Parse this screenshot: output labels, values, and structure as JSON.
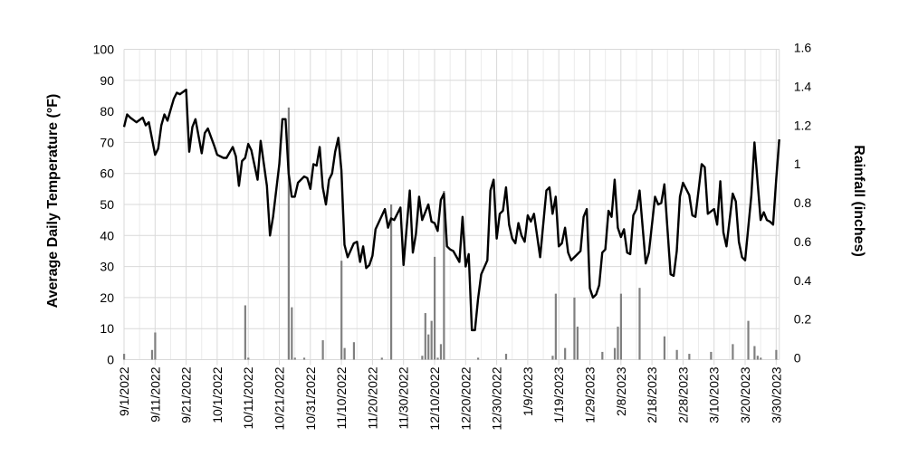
{
  "chart_data": {
    "type": "bar+line",
    "title": "",
    "xlabel": "",
    "ylabel_left": "Average Daily Temperature (°F)",
    "ylabel_right": "Rainfall (inches)",
    "ylim_left": [
      0,
      100
    ],
    "ylim_right": [
      0,
      1.6
    ],
    "yticks_left": [
      "0",
      "10",
      "20",
      "30",
      "40",
      "50",
      "60",
      "70",
      "80",
      "90",
      "100"
    ],
    "yticks_right": [
      "0",
      "0.2",
      "0.4",
      "0.6",
      "0.8",
      "1",
      "1.2",
      "1.4",
      "1.6"
    ],
    "xlim": [
      "9/1/2022",
      "3/31/2023"
    ],
    "xtick_labels": [
      "9/1/2022",
      "9/11/2022",
      "9/21/2022",
      "10/1/2022",
      "10/11/2022",
      "10/21/2022",
      "10/31/2022",
      "11/10/2022",
      "11/20/2022",
      "11/30/2022",
      "12/10/2022",
      "12/20/2022",
      "12/30/2022",
      "1/9/2023",
      "1/19/2023",
      "1/29/2023",
      "2/8/2023",
      "2/18/2023",
      "2/28/2023",
      "3/10/2023",
      "3/20/2023",
      "3/30/2023"
    ],
    "grid": true,
    "legend": "none",
    "colors": {
      "temperature_line": "#000000",
      "rainfall_bars": "#808080",
      "grid": "#d9d9d9"
    },
    "temperature": [
      [
        "9/1/2022",
        75
      ],
      [
        "9/2/2022",
        79
      ],
      [
        "9/3/2022",
        78
      ],
      [
        "9/5/2022",
        76.5
      ],
      [
        "9/7/2022",
        78
      ],
      [
        "9/8/2022",
        75.5
      ],
      [
        "9/9/2022",
        76.5
      ],
      [
        "9/11/2022",
        66
      ],
      [
        "9/12/2022",
        68
      ],
      [
        "9/13/2022",
        75.5
      ],
      [
        "9/14/2022",
        79
      ],
      [
        "9/15/2022",
        77
      ],
      [
        "9/16/2022",
        80.5
      ],
      [
        "9/17/2022",
        84
      ],
      [
        "9/18/2022",
        86
      ],
      [
        "9/19/2022",
        85.5
      ],
      [
        "9/21/2022",
        87
      ],
      [
        "9/22/2022",
        67
      ],
      [
        "9/23/2022",
        75
      ],
      [
        "9/24/2022",
        77.5
      ],
      [
        "9/26/2022",
        66.5
      ],
      [
        "9/27/2022",
        73
      ],
      [
        "9/28/2022",
        74.5
      ],
      [
        "9/30/2022",
        69
      ],
      [
        "10/1/2022",
        66
      ],
      [
        "10/3/2022",
        65
      ],
      [
        "10/4/2022",
        65
      ],
      [
        "10/6/2022",
        68.5
      ],
      [
        "10/7/2022",
        65.5
      ],
      [
        "10/8/2022",
        56
      ],
      [
        "10/9/2022",
        64
      ],
      [
        "10/10/2022",
        65
      ],
      [
        "10/11/2022",
        69.5
      ],
      [
        "10/12/2022",
        67.5
      ],
      [
        "10/14/2022",
        58
      ],
      [
        "10/15/2022",
        70.5
      ],
      [
        "10/17/2022",
        56
      ],
      [
        "10/18/2022",
        40
      ],
      [
        "10/19/2022",
        46
      ],
      [
        "10/21/2022",
        63
      ],
      [
        "10/22/2022",
        77.5
      ],
      [
        "10/23/2022",
        77.5
      ],
      [
        "10/24/2022",
        60
      ],
      [
        "10/25/2022",
        52.5
      ],
      [
        "10/26/2022",
        52.5
      ],
      [
        "10/27/2022",
        57
      ],
      [
        "10/29/2022",
        59
      ],
      [
        "10/30/2022",
        58.5
      ],
      [
        "10/31/2022",
        55
      ],
      [
        "11/1/2022",
        63
      ],
      [
        "11/2/2022",
        62.5
      ],
      [
        "11/3/2022",
        68.5
      ],
      [
        "11/4/2022",
        55.5
      ],
      [
        "11/5/2022",
        50
      ],
      [
        "11/6/2022",
        58
      ],
      [
        "11/7/2022",
        60
      ],
      [
        "11/8/2022",
        67
      ],
      [
        "11/9/2022",
        71.5
      ],
      [
        "11/10/2022",
        61
      ],
      [
        "11/11/2022",
        37
      ],
      [
        "11/12/2022",
        33
      ],
      [
        "11/14/2022",
        37.5
      ],
      [
        "11/15/2022",
        38
      ],
      [
        "11/16/2022",
        31.5
      ],
      [
        "11/17/2022",
        36.5
      ],
      [
        "11/18/2022",
        29.5
      ],
      [
        "11/19/2022",
        30.5
      ],
      [
        "11/20/2022",
        33.5
      ],
      [
        "11/21/2022",
        42
      ],
      [
        "11/24/2022",
        48.5
      ],
      [
        "11/25/2022",
        42.5
      ],
      [
        "11/26/2022",
        45.5
      ],
      [
        "11/27/2022",
        45
      ],
      [
        "11/29/2022",
        49
      ],
      [
        "11/30/2022",
        30.5
      ],
      [
        "12/2/2022",
        54.5
      ],
      [
        "12/3/2022",
        34.5
      ],
      [
        "12/4/2022",
        40.5
      ],
      [
        "12/5/2022",
        52.5
      ],
      [
        "12/6/2022",
        45
      ],
      [
        "12/8/2022",
        50
      ],
      [
        "12/9/2022",
        44.5
      ],
      [
        "12/10/2022",
        44
      ],
      [
        "12/11/2022",
        41.5
      ],
      [
        "12/12/2022",
        51.5
      ],
      [
        "12/13/2022",
        53.5
      ],
      [
        "12/14/2022",
        36.5
      ],
      [
        "12/15/2022",
        35.5
      ],
      [
        "12/16/2022",
        35
      ],
      [
        "12/18/2022",
        31.5
      ],
      [
        "12/19/2022",
        46
      ],
      [
        "12/20/2022",
        30
      ],
      [
        "12/21/2022",
        34
      ],
      [
        "12/22/2022",
        9.5
      ],
      [
        "12/23/2022",
        9.5
      ],
      [
        "12/24/2022",
        19.5
      ],
      [
        "12/25/2022",
        27.5
      ],
      [
        "12/27/2022",
        32
      ],
      [
        "12/28/2022",
        54.5
      ],
      [
        "12/29/2022",
        58
      ],
      [
        "12/30/2022",
        39
      ],
      [
        "12/31/2022",
        47
      ],
      [
        "1/1/2023",
        48
      ],
      [
        "1/2/2023",
        55.5
      ],
      [
        "1/3/2023",
        43.5
      ],
      [
        "1/4/2023",
        39
      ],
      [
        "1/5/2023",
        37.5
      ],
      [
        "1/6/2023",
        44
      ],
      [
        "1/7/2023",
        40
      ],
      [
        "1/8/2023",
        38
      ],
      [
        "1/9/2023",
        46.5
      ],
      [
        "1/10/2023",
        44.5
      ],
      [
        "1/11/2023",
        47
      ],
      [
        "1/13/2023",
        33
      ],
      [
        "1/15/2023",
        54.5
      ],
      [
        "1/16/2023",
        55.5
      ],
      [
        "1/17/2023",
        47
      ],
      [
        "1/18/2023",
        52.5
      ],
      [
        "1/19/2023",
        36.5
      ],
      [
        "1/20/2023",
        37.5
      ],
      [
        "1/21/2023",
        42.5
      ],
      [
        "1/22/2023",
        34.5
      ],
      [
        "1/23/2023",
        32
      ],
      [
        "1/25/2023",
        34
      ],
      [
        "1/26/2023",
        35
      ],
      [
        "1/27/2023",
        46
      ],
      [
        "1/28/2023",
        48.5
      ],
      [
        "1/29/2023",
        23
      ],
      [
        "1/30/2023",
        20
      ],
      [
        "1/31/2023",
        21
      ],
      [
        "2/1/2023",
        24
      ],
      [
        "2/2/2023",
        34.5
      ],
      [
        "2/3/2023",
        35.5
      ],
      [
        "2/4/2023",
        48
      ],
      [
        "2/5/2023",
        46
      ],
      [
        "2/6/2023",
        58
      ],
      [
        "2/7/2023",
        42.5
      ],
      [
        "2/8/2023",
        39.5
      ],
      [
        "2/9/2023",
        42
      ],
      [
        "2/10/2023",
        34.5
      ],
      [
        "2/11/2023",
        34
      ],
      [
        "2/12/2023",
        46.5
      ],
      [
        "2/13/2023",
        48.5
      ],
      [
        "2/14/2023",
        54.5
      ],
      [
        "2/16/2023",
        31
      ],
      [
        "2/17/2023",
        34.5
      ],
      [
        "2/19/2023",
        52.5
      ],
      [
        "2/20/2023",
        50
      ],
      [
        "2/21/2023",
        50.5
      ],
      [
        "2/22/2023",
        56.5
      ],
      [
        "2/24/2023",
        27.5
      ],
      [
        "2/25/2023",
        27
      ],
      [
        "2/26/2023",
        35
      ],
      [
        "2/27/2023",
        52.5
      ],
      [
        "2/28/2023",
        57
      ],
      [
        "3/2/2023",
        53
      ],
      [
        "3/3/2023",
        46.5
      ],
      [
        "3/4/2023",
        46
      ],
      [
        "3/6/2023",
        63
      ],
      [
        "3/7/2023",
        62
      ],
      [
        "3/8/2023",
        47
      ],
      [
        "3/10/2023",
        48.5
      ],
      [
        "3/11/2023",
        43.5
      ],
      [
        "3/12/2023",
        57.5
      ],
      [
        "3/13/2023",
        41
      ],
      [
        "3/14/2023",
        36.5
      ],
      [
        "3/16/2023",
        53.5
      ],
      [
        "3/17/2023",
        51
      ],
      [
        "3/18/2023",
        38
      ],
      [
        "3/19/2023",
        33
      ],
      [
        "3/20/2023",
        32
      ],
      [
        "3/22/2023",
        53
      ],
      [
        "3/23/2023",
        70
      ],
      [
        "3/25/2023",
        45
      ],
      [
        "3/26/2023",
        47.5
      ],
      [
        "3/27/2023",
        45
      ],
      [
        "3/28/2023",
        44.5
      ],
      [
        "3/29/2023",
        43.5
      ],
      [
        "3/30/2023",
        58
      ],
      [
        "3/31/2023",
        71
      ]
    ],
    "rainfall": [
      [
        "9/1/2022",
        0.03
      ],
      [
        "9/10/2022",
        0.05
      ],
      [
        "9/11/2022",
        0.14
      ],
      [
        "10/10/2022",
        0.28
      ],
      [
        "10/11/2022",
        0.01
      ],
      [
        "10/24/2022",
        1.3
      ],
      [
        "10/25/2022",
        0.27
      ],
      [
        "10/26/2022",
        0.01
      ],
      [
        "10/29/2022",
        0.01
      ],
      [
        "11/4/2022",
        0.1
      ],
      [
        "11/10/2022",
        0.51
      ],
      [
        "11/11/2022",
        0.06
      ],
      [
        "11/14/2022",
        0.09
      ],
      [
        "11/23/2022",
        0.01
      ],
      [
        "11/26/2022",
        0.8
      ],
      [
        "12/6/2022",
        0.02
      ],
      [
        "12/7/2022",
        0.24
      ],
      [
        "12/8/2022",
        0.13
      ],
      [
        "12/9/2022",
        0.2
      ],
      [
        "12/10/2022",
        0.53
      ],
      [
        "12/11/2022",
        0.01
      ],
      [
        "12/12/2022",
        0.08
      ],
      [
        "12/13/2022",
        0.87
      ],
      [
        "12/24/2022",
        0.01
      ],
      [
        "1/2/2023",
        0.03
      ],
      [
        "1/17/2023",
        0.02
      ],
      [
        "1/18/2023",
        0.34
      ],
      [
        "1/21/2023",
        0.06
      ],
      [
        "1/24/2023",
        0.32
      ],
      [
        "1/25/2023",
        0.17
      ],
      [
        "2/2/2023",
        0.04
      ],
      [
        "2/6/2023",
        0.06
      ],
      [
        "2/7/2023",
        0.17
      ],
      [
        "2/8/2023",
        0.34
      ],
      [
        "2/14/2023",
        0.37
      ],
      [
        "2/22/2023",
        0.12
      ],
      [
        "2/26/2023",
        0.05
      ],
      [
        "3/2/2023",
        0.03
      ],
      [
        "3/9/2023",
        0.04
      ],
      [
        "3/16/2023",
        0.08
      ],
      [
        "3/21/2023",
        0.2
      ],
      [
        "3/23/2023",
        0.07
      ],
      [
        "3/24/2023",
        0.02
      ],
      [
        "3/25/2023",
        0.01
      ],
      [
        "3/30/2023",
        0.05
      ]
    ]
  }
}
